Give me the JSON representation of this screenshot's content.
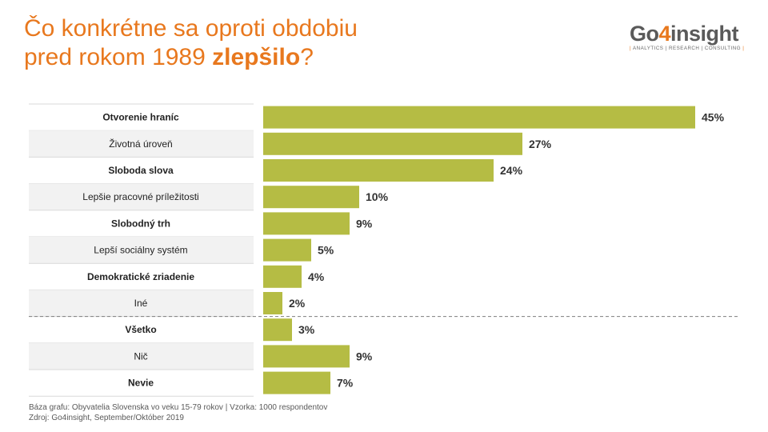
{
  "title": {
    "line1_a": "Čo konkrétne sa",
    "line1_b": "oproti obdobiu",
    "line2_a": "pred rokom 1989",
    "line2_highlight": "zlepšilo",
    "line2_end": "?"
  },
  "logo": {
    "word_a": "Go",
    "word_four": "4",
    "word_b": "insight",
    "tagline": "ANALYTICS | RESEARCH | CONSULTING"
  },
  "colors": {
    "title": "#e8781e",
    "bar": "#b5bc44",
    "row_shade": "#f2f2f2",
    "accent": "#e8781e"
  },
  "chart_data": {
    "type": "bar",
    "orientation": "horizontal",
    "categories": [
      "Otvorenie hraníc",
      "Životná úroveň",
      "Sloboda slova",
      "Lepšie pracovné príležitosti",
      "Slobodný trh",
      "Lepší sociálny systém",
      "Demokratické zriadenie",
      "Iné",
      "Všetko",
      "Nič",
      "Nevie"
    ],
    "values": [
      45,
      27,
      24,
      10,
      9,
      5,
      4,
      2,
      3,
      9,
      7
    ],
    "value_labels": [
      "45%",
      "27%",
      "24%",
      "10%",
      "9%",
      "5%",
      "4%",
      "2%",
      "3%",
      "9%",
      "7%"
    ],
    "bold_categories": [
      0,
      2,
      4,
      6,
      8,
      10
    ],
    "separator_after_index": 7,
    "xlim": [
      0,
      45
    ],
    "unit": "%",
    "grid": false,
    "legend": false
  },
  "footer": {
    "line1": "Báza grafu: Obyvatelia Slovenska vo veku 15-79 rokov  |  Vzorka: 1000 respondentov",
    "line2": "Zdroj: Go4insight,  September/Október 2019"
  }
}
